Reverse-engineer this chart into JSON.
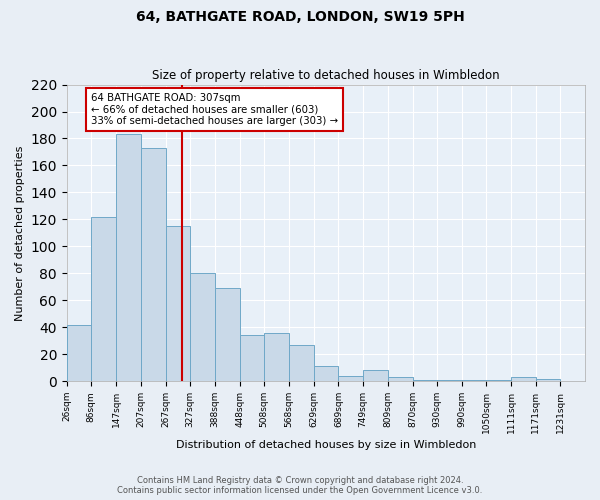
{
  "title": "64, BATHGATE ROAD, LONDON, SW19 5PH",
  "subtitle": "Size of property relative to detached houses in Wimbledon",
  "xlabel": "Distribution of detached houses by size in Wimbledon",
  "ylabel": "Number of detached properties",
  "footnote1": "Contains HM Land Registry data © Crown copyright and database right 2024.",
  "footnote2": "Contains public sector information licensed under the Open Government Licence v3.0.",
  "bar_left_edges": [
    26,
    86,
    147,
    207,
    267,
    327,
    388,
    448,
    508,
    568,
    629,
    689,
    749,
    809,
    870,
    930,
    990,
    1050,
    1111,
    1171
  ],
  "bar_widths": [
    60,
    61,
    60,
    60,
    60,
    61,
    60,
    60,
    60,
    61,
    60,
    60,
    60,
    61,
    60,
    60,
    60,
    61,
    60,
    60
  ],
  "bar_heights": [
    42,
    122,
    183,
    173,
    115,
    80,
    69,
    34,
    36,
    27,
    11,
    4,
    8,
    3,
    1,
    1,
    1,
    1,
    3,
    2
  ],
  "bar_color": "#c9d9e8",
  "bar_edge_color": "#6fa8c8",
  "tick_labels": [
    "26sqm",
    "86sqm",
    "147sqm",
    "207sqm",
    "267sqm",
    "327sqm",
    "388sqm",
    "448sqm",
    "508sqm",
    "568sqm",
    "629sqm",
    "689sqm",
    "749sqm",
    "809sqm",
    "870sqm",
    "930sqm",
    "990sqm",
    "1050sqm",
    "1111sqm",
    "1171sqm",
    "1231sqm"
  ],
  "ylim": [
    0,
    220
  ],
  "yticks": [
    0,
    20,
    40,
    60,
    80,
    100,
    120,
    140,
    160,
    180,
    200,
    220
  ],
  "vline_x": 307,
  "vline_color": "#cc0000",
  "annotation_title": "64 BATHGATE ROAD: 307sqm",
  "annotation_line1": "← 66% of detached houses are smaller (603)",
  "annotation_line2": "33% of semi-detached houses are larger (303) →",
  "bg_color": "#e8eef5",
  "plot_bg_color": "#e8f0f8"
}
